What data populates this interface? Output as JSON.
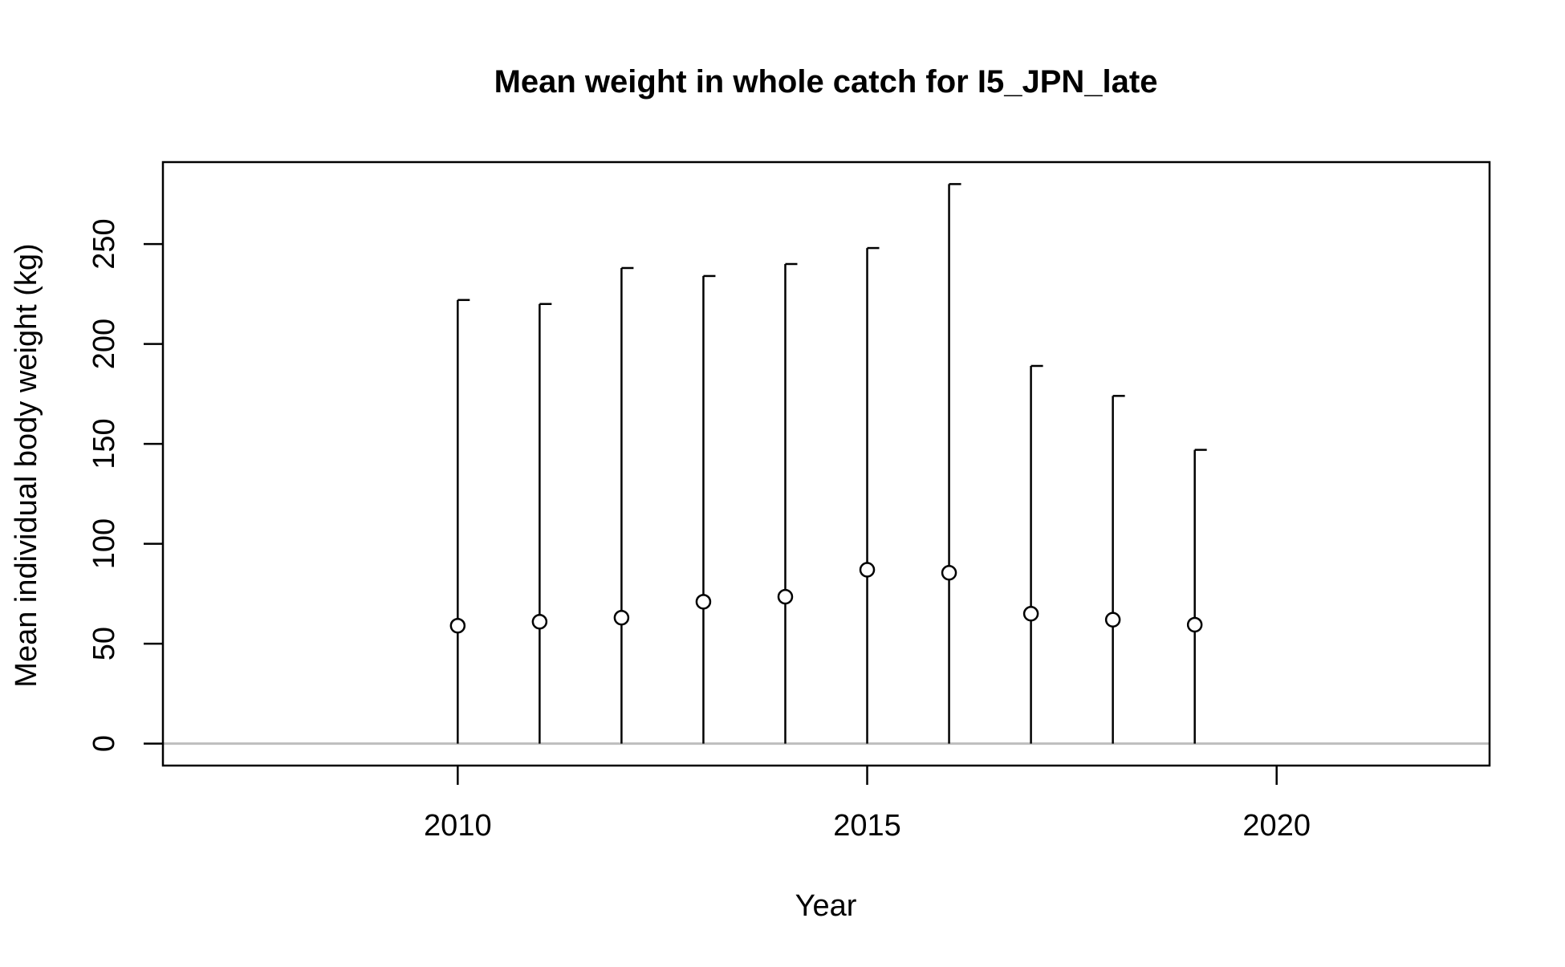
{
  "chart_data": {
    "type": "scatter",
    "title": "Mean weight in whole catch for I5_JPN_late",
    "xlabel": "Year",
    "ylabel": "Mean individual body weight (kg)",
    "xlim": [
      2006.4,
      2022.6
    ],
    "ylim": [
      -11,
      291
    ],
    "xticks": [
      2010,
      2015,
      2020
    ],
    "yticks": [
      0,
      50,
      100,
      150,
      200,
      250
    ],
    "grid": false,
    "legend": "none",
    "reference_line": {
      "y": 0,
      "color": "#bebebe"
    },
    "series": [
      {
        "x": [
          2010,
          2011,
          2012,
          2013,
          2014,
          2015,
          2016,
          2017,
          2018,
          2019
        ],
        "y": [
          59,
          61,
          63,
          71,
          73.5,
          87,
          85.5,
          65,
          62,
          59.5
        ],
        "lower": [
          0,
          0,
          0,
          0,
          0,
          0,
          0,
          0,
          0,
          0
        ],
        "upper": [
          222,
          220,
          238,
          234,
          240,
          248,
          280,
          189,
          174,
          147
        ]
      }
    ],
    "colors": {
      "marks": "#000000",
      "point_fill": "#ffffff",
      "zero_line": "#bebebe"
    }
  }
}
